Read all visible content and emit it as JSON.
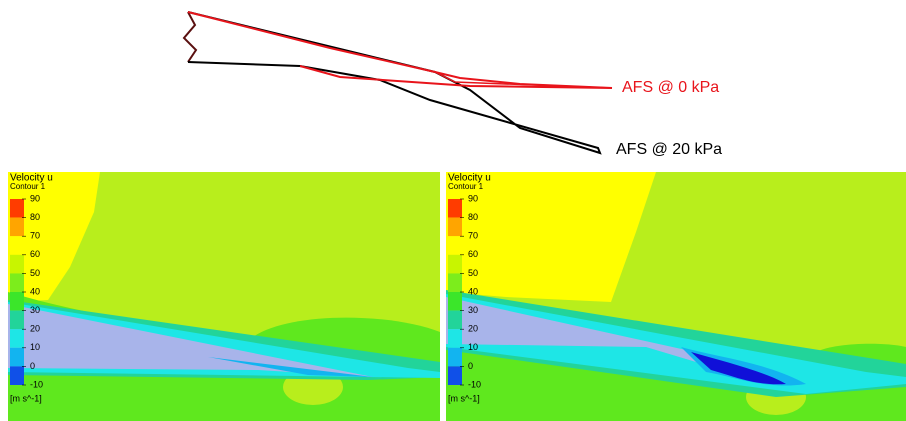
{
  "figure": {
    "labels": [
      {
        "text": "AFS @ 0 kPa",
        "color": "#e8141b"
      },
      {
        "text": "AFS @ 20 kPa",
        "color": "#000000"
      }
    ]
  },
  "panels": [
    {
      "title": "Velocity u",
      "subtitle": "Contour 1",
      "ticks": [
        90,
        80,
        70,
        60,
        50,
        40,
        30,
        20,
        10,
        0,
        -10
      ],
      "unit": "[m s^-1]",
      "colors": [
        "#ff3c00",
        "#ffa500",
        "#ffff00",
        "#c8f500",
        "#7ced1c",
        "#3be62a",
        "#22d49a",
        "#1ee6e6",
        "#12b4f0",
        "#1050e8"
      ]
    },
    {
      "title": "Velocity u",
      "subtitle": "Contour 1",
      "ticks": [
        90,
        80,
        70,
        60,
        50,
        40,
        30,
        20,
        10,
        0,
        -10
      ],
      "unit": "[m s^-1]",
      "colors": [
        "#ff3c00",
        "#ffa500",
        "#ffff00",
        "#c8f500",
        "#7ced1c",
        "#3be62a",
        "#22d49a",
        "#1ee6e6",
        "#12b4f0",
        "#1050e8"
      ]
    }
  ]
}
